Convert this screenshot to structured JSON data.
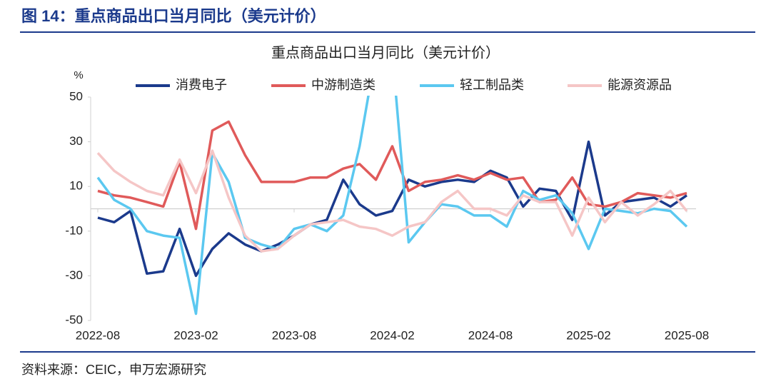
{
  "figure_title": "图 14：重点商品出口当月同比（美元计价）",
  "source": "资料来源：CEIC，申万宏源研究",
  "chart_data": {
    "type": "line",
    "title": "重点商品出口当月同比（美元计价）",
    "y_unit": "%",
    "x": [
      "2022-08",
      "2022-09",
      "2022-10",
      "2022-11",
      "2022-12",
      "2023-01",
      "2023-02",
      "2023-03",
      "2023-04",
      "2023-05",
      "2023-06",
      "2023-07",
      "2023-08",
      "2023-09",
      "2023-10",
      "2023-11",
      "2023-12",
      "2024-01",
      "2024-02",
      "2024-03",
      "2024-04",
      "2024-05",
      "2024-06",
      "2024-07",
      "2024-08",
      "2024-09",
      "2024-10",
      "2024-11",
      "2024-12",
      "2025-01",
      "2025-02",
      "2025-03",
      "2025-04",
      "2025-05",
      "2025-06",
      "2025-07",
      "2025-08"
    ],
    "xticks": [
      "2022-08",
      "2023-02",
      "2023-08",
      "2024-02",
      "2024-08",
      "2025-02",
      "2025-08"
    ],
    "ylim": [
      -50,
      50
    ],
    "yticks": [
      -50,
      -30,
      -10,
      10,
      30,
      50
    ],
    "legend": "top",
    "series": [
      {
        "name": "消费电子",
        "color": "#1b3a8c",
        "values": [
          -4,
          -6,
          -1,
          -29,
          -28,
          -9,
          -30,
          -18,
          -11,
          -16,
          -19,
          -16,
          -12,
          -7,
          -5,
          13,
          2,
          -3,
          -1,
          13,
          10,
          12,
          13,
          12,
          17,
          14,
          1,
          9,
          8,
          -5,
          30,
          -3,
          3,
          4,
          5,
          1,
          6
        ]
      },
      {
        "name": "中游制造类",
        "color": "#e05a5a",
        "values": [
          8,
          6,
          5,
          3,
          1,
          21,
          -9,
          35,
          39,
          24,
          12,
          12,
          12,
          14,
          14,
          18,
          20,
          13,
          28,
          8,
          12,
          13,
          15,
          13,
          16,
          13,
          14,
          3,
          4,
          14,
          2,
          1,
          3,
          7,
          6,
          5,
          7
        ]
      },
      {
        "name": "轻工制品类",
        "color": "#5bc8f0",
        "values": [
          14,
          4,
          0,
          -10,
          -12,
          -13,
          -47,
          25,
          12,
          -13,
          -16,
          -18,
          -9,
          -7,
          -10,
          -3,
          28,
          70,
          70,
          -15,
          -6,
          2,
          1,
          -3,
          -3,
          -8,
          8,
          4,
          6,
          -2,
          -18,
          0,
          -1,
          -2,
          0,
          -1,
          -8
        ]
      },
      {
        "name": "能源资源品",
        "color": "#f5c6c6",
        "values": [
          25,
          17,
          12,
          8,
          6,
          22,
          7,
          26,
          5,
          -12,
          -19,
          -18,
          -12,
          -7,
          -6,
          -5,
          -8,
          -9,
          -12,
          -8,
          -6,
          3,
          8,
          0,
          0,
          -3,
          6,
          3,
          3,
          -12,
          5,
          -6,
          3,
          -3,
          2,
          8,
          -1
        ]
      }
    ]
  }
}
